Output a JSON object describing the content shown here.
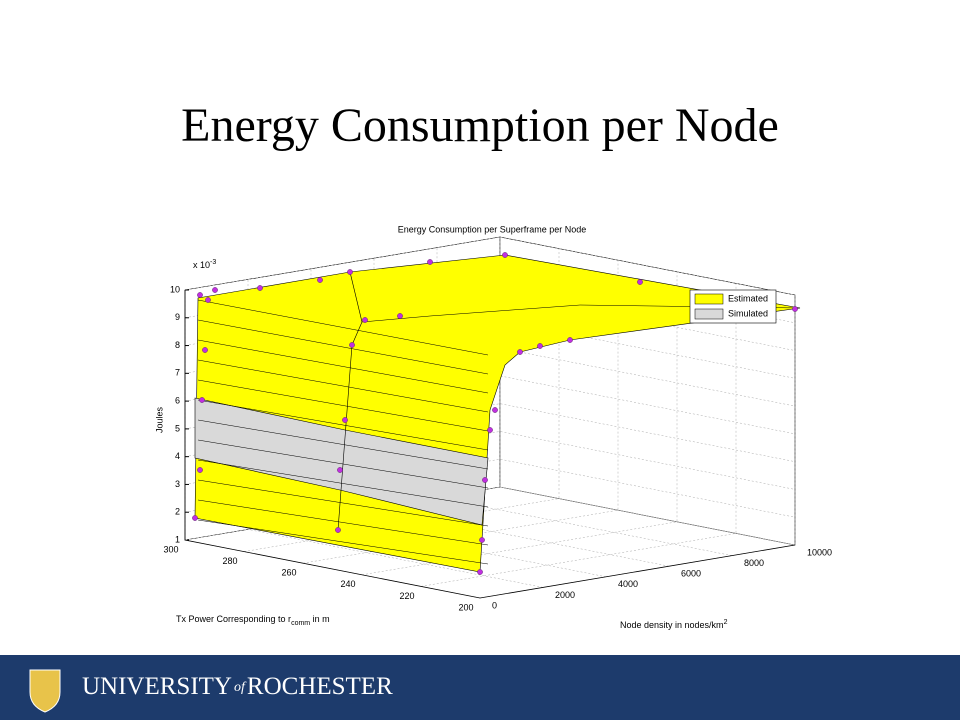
{
  "slide_title": "Energy Consumption per Node",
  "chart_data": {
    "type": "surface3d",
    "title": "Energy Consumption per Superframe per Node",
    "zlabel": "Joules",
    "zmultiplier": {
      "base": "x 10",
      "exponent": "-3"
    },
    "xlabel": {
      "text": "Tx Power Corresponding to r",
      "subscript": "comm",
      "suffix": " in m"
    },
    "ylabel": {
      "text": "Node density in nodes/km",
      "superscript": "2"
    },
    "xlim": [
      200,
      300
    ],
    "xticks": [
      300,
      280,
      260,
      240,
      220,
      200
    ],
    "ylim": [
      0,
      10000
    ],
    "yticks": [
      0,
      2000,
      4000,
      6000,
      8000,
      10000
    ],
    "zlim": [
      1,
      10
    ],
    "zticks": [
      1,
      2,
      3,
      4,
      5,
      6,
      7,
      8,
      9,
      10
    ],
    "grid": true,
    "series": [
      {
        "name": "Estimated",
        "color": "#ffff00"
      },
      {
        "name": "Simulated",
        "color": "#d9d9d9"
      }
    ]
  },
  "footer": {
    "university": "UNIVERSITY",
    "of": "of",
    "city": "ROCHESTER"
  }
}
